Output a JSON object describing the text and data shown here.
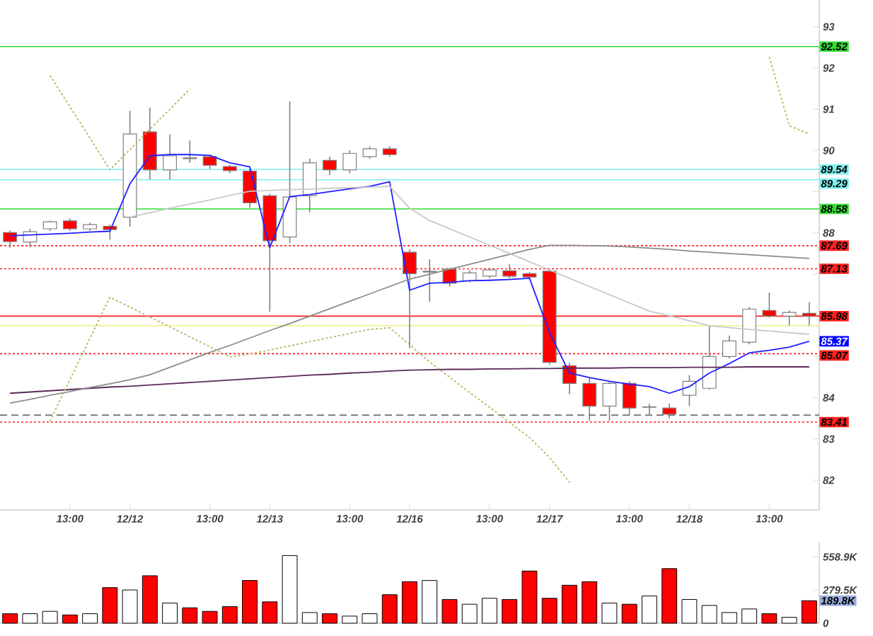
{
  "chart_data": [
    {
      "type": "candlestick",
      "categories": [
        null,
        null,
        null,
        "13:00",
        null,
        null,
        "12/12",
        null,
        null,
        null,
        "13:00",
        null,
        null,
        "12/13",
        null,
        null,
        null,
        "13:00",
        null,
        null,
        "12/16",
        null,
        null,
        null,
        "13:00",
        null,
        null,
        "12/17",
        null,
        null,
        null,
        "13:00",
        null,
        null,
        "12/18",
        null,
        null,
        null,
        "13:00",
        null,
        null
      ],
      "ohlc": [
        [
          88.01,
          88.06,
          87.64,
          87.79
        ],
        [
          87.78,
          88.1,
          87.65,
          88.03
        ],
        [
          88.1,
          88.3,
          88.05,
          88.27
        ],
        [
          88.29,
          88.35,
          88.05,
          88.1
        ],
        [
          88.1,
          88.25,
          88.05,
          88.2
        ],
        [
          88.16,
          88.2,
          87.84,
          88.08
        ],
        [
          88.38,
          90.96,
          88.15,
          90.4
        ],
        [
          90.45,
          91.04,
          89.3,
          89.53
        ],
        [
          89.53,
          90.39,
          89.3,
          89.87
        ],
        [
          89.82,
          90.24,
          89.7,
          89.8
        ],
        [
          89.85,
          89.9,
          89.55,
          89.64
        ],
        [
          89.61,
          89.65,
          89.45,
          89.51
        ],
        [
          89.5,
          89.55,
          88.61,
          88.73
        ],
        [
          88.9,
          88.95,
          86.09,
          87.81
        ],
        [
          87.9,
          91.19,
          87.75,
          88.87
        ],
        [
          88.9,
          89.8,
          88.5,
          89.7
        ],
        [
          89.76,
          89.85,
          89.4,
          89.53
        ],
        [
          89.53,
          90.0,
          89.45,
          89.93
        ],
        [
          89.85,
          90.1,
          89.8,
          90.04
        ],
        [
          90.04,
          90.1,
          89.85,
          89.9
        ],
        [
          87.53,
          87.6,
          85.2,
          87.01
        ],
        [
          87.05,
          87.36,
          86.33,
          87.07
        ],
        [
          87.12,
          87.15,
          86.7,
          86.78
        ],
        [
          86.84,
          87.1,
          86.8,
          87.03
        ],
        [
          86.95,
          87.15,
          86.9,
          87.1
        ],
        [
          87.08,
          87.24,
          86.9,
          86.95
        ],
        [
          87.01,
          87.05,
          86.88,
          86.93
        ],
        [
          87.07,
          87.1,
          84.8,
          84.86
        ],
        [
          84.78,
          84.85,
          84.09,
          84.35
        ],
        [
          84.35,
          84.49,
          83.44,
          83.8
        ],
        [
          83.8,
          84.4,
          83.44,
          84.35
        ],
        [
          84.35,
          84.4,
          83.57,
          83.75
        ],
        [
          83.77,
          83.85,
          83.6,
          83.78
        ],
        [
          83.75,
          83.86,
          83.5,
          83.6
        ],
        [
          84.06,
          84.55,
          83.8,
          84.4
        ],
        [
          84.23,
          85.75,
          84.2,
          85.0
        ],
        [
          85.0,
          85.51,
          84.95,
          85.38
        ],
        [
          85.35,
          86.2,
          85.3,
          86.15
        ],
        [
          86.12,
          86.55,
          85.95,
          85.98
        ],
        [
          85.98,
          86.12,
          85.75,
          86.07
        ],
        [
          86.05,
          86.32,
          85.75,
          85.98
        ]
      ],
      "colors": [
        "#ff0000",
        "#ffffff",
        "#ffffff",
        "#ff0000",
        "#ffffff",
        "#ff0000",
        "#ffffff",
        "#ff0000",
        "#ffffff",
        "#ff0000",
        "#ff0000",
        "#ff0000",
        "#ff0000",
        "#ff0000",
        "#ffffff",
        "#ffffff",
        "#ff0000",
        "#ffffff",
        "#ffffff",
        "#ff0000",
        "#ff0000",
        "#ffffff",
        "#ff0000",
        "#ffffff",
        "#ffffff",
        "#ff0000",
        "#ff0000",
        "#ff0000",
        "#ff0000",
        "#ff0000",
        "#ffffff",
        "#ff0000",
        "#ffffff",
        "#ff0000",
        "#ffffff",
        "#ffffff",
        "#ffffff",
        "#ffffff",
        "#ff0000",
        "#ffffff",
        "#ff0000"
      ],
      "series": [
        {
          "type": "line",
          "color": "#1f1fff",
          "line_style": "solid",
          "values": [
            87.93,
            87.95,
            87.97,
            87.99,
            88.02,
            88.04,
            89.19,
            89.87,
            89.9,
            89.9,
            89.88,
            89.7,
            89.6,
            87.64,
            88.88,
            88.93,
            89.0,
            89.07,
            89.13,
            89.24,
            86.61,
            86.78,
            86.8,
            86.84,
            86.85,
            86.87,
            86.9,
            85.58,
            84.6,
            84.49,
            84.4,
            84.33,
            84.27,
            84.11,
            84.27,
            84.6,
            84.83,
            85.09,
            85.15,
            85.23,
            85.37
          ]
        },
        {
          "type": "line",
          "color": "#5a2a5a",
          "line_style": "solid",
          "values": [
            84.11,
            84.14,
            84.17,
            84.2,
            84.23,
            84.26,
            84.28,
            84.31,
            84.34,
            84.37,
            84.4,
            84.43,
            84.46,
            84.49,
            84.52,
            84.55,
            84.57,
            84.6,
            84.62,
            84.65,
            84.67,
            84.68,
            84.69,
            84.69,
            84.7,
            84.7,
            84.71,
            84.71,
            84.72,
            84.72,
            84.72,
            84.73,
            84.73,
            84.73,
            84.74,
            84.74,
            84.74,
            84.75,
            84.75,
            84.75,
            84.75
          ]
        },
        {
          "type": "line",
          "color": "#8c8c8c",
          "line_style": "solid",
          "values": [
            83.87,
            83.96,
            84.06,
            84.15,
            84.25,
            84.34,
            84.44,
            84.56,
            84.74,
            84.92,
            85.1,
            85.27,
            85.45,
            85.63,
            85.8,
            85.98,
            86.16,
            86.34,
            86.52,
            86.7,
            86.88,
            87.0,
            87.12,
            87.24,
            87.36,
            87.48,
            87.6,
            87.7,
            87.7,
            87.69,
            87.68,
            87.66,
            87.63,
            87.6,
            87.56,
            87.53,
            87.5,
            87.47,
            87.44,
            87.41,
            87.38
          ]
        },
        {
          "type": "line",
          "color": "#c8c8c8",
          "line_style": "solid",
          "values": [
            null,
            null,
            null,
            null,
            null,
            null,
            88.38,
            88.49,
            88.6,
            88.7,
            88.8,
            88.91,
            89.01,
            89.03,
            89.05,
            89.06,
            89.08,
            89.1,
            89.11,
            89.13,
            88.6,
            88.3,
            88.1,
            87.9,
            87.7,
            87.5,
            87.3,
            87.1,
            86.9,
            86.7,
            86.5,
            86.3,
            86.1,
            85.99,
            85.87,
            85.75,
            85.7,
            85.66,
            85.62,
            85.58,
            85.54
          ]
        },
        {
          "type": "line",
          "color": "#b5b560",
          "line_style": "dotted",
          "values": [
            null,
            null,
            91.82,
            91.06,
            90.3,
            89.53,
            90.02,
            90.51,
            91.0,
            91.49,
            null,
            null,
            null,
            null,
            null,
            null,
            null,
            null,
            null,
            null,
            null,
            null,
            null,
            null,
            null,
            null,
            null,
            null,
            null,
            null,
            null,
            null,
            null,
            null,
            null,
            null,
            null,
            null,
            92.27,
            90.6,
            90.4
          ]
        },
        {
          "type": "line",
          "color": "#b5b560",
          "line_style": "dotted",
          "values": [
            null,
            null,
            83.43,
            84.44,
            85.44,
            86.44,
            86.2,
            85.96,
            85.72,
            85.48,
            85.24,
            84.99,
            85.06,
            85.16,
            85.26,
            85.36,
            85.46,
            85.56,
            85.66,
            85.7,
            85.29,
            84.87,
            84.5,
            84.13,
            83.77,
            83.4,
            83.04,
            82.55,
            81.95,
            null,
            null,
            null,
            null,
            null,
            null,
            null,
            null,
            null,
            null,
            null,
            null
          ]
        }
      ],
      "ref_lines": [
        {
          "axis": "y",
          "value": 92.52,
          "label": "92.52",
          "color": "#33dd33",
          "line_style": "solid"
        },
        {
          "axis": "y",
          "value": 89.54,
          "label": "89.54",
          "color": "#80f0f0",
          "line_style": "solid"
        },
        {
          "axis": "y",
          "value": 89.29,
          "label": "89.29",
          "color": "#80f0f0",
          "line_style": "solid"
        },
        {
          "axis": "y",
          "value": 88.58,
          "label": "88.58",
          "color": "#33dd33",
          "line_style": "solid"
        },
        {
          "axis": "y",
          "value": 87.69,
          "label": "87.69",
          "color": "#ff2020",
          "line_style": "dotted"
        },
        {
          "axis": "y",
          "value": 87.13,
          "label": "87.13",
          "color": "#ff2020",
          "line_style": "dotted"
        },
        {
          "axis": "y",
          "value": 85.98,
          "label": "85.98",
          "color": "#ff2020",
          "line_style": "solid"
        },
        {
          "axis": "y",
          "value": 85.75,
          "label": null,
          "color": "#f0f080",
          "line_style": "solid"
        },
        {
          "axis": "y",
          "value": 85.07,
          "label": "85.07",
          "color": "#ff2020",
          "line_style": "dotted"
        },
        {
          "axis": "y",
          "value": 83.58,
          "label": null,
          "color": "#707070",
          "line_style": "dashed"
        },
        {
          "axis": "y",
          "value": 83.41,
          "label": "83.41",
          "color": "#ff2020",
          "line_style": "dotted"
        }
      ],
      "annotations": [
        {
          "text": "85.37",
          "y": 85.37
        }
      ],
      "ylim": [
        81.28,
        93.65
      ],
      "yticks": [
        82,
        83,
        84,
        {
          "value": 85,
          "label": null
        },
        {
          "value": 86,
          "label": null
        },
        {
          "value": 87,
          "label": null
        },
        88,
        {
          "value": 89,
          "label": null
        },
        90,
        91,
        92,
        93
      ],
      "grid": false
    },
    {
      "type": "bar",
      "categories": [
        null,
        null,
        null,
        null,
        null,
        null,
        null,
        null,
        null,
        null,
        null,
        null,
        null,
        null,
        null,
        null,
        null,
        null,
        null,
        null,
        null,
        null,
        null,
        null,
        null,
        null,
        null,
        null,
        null,
        null,
        null,
        null,
        null,
        null,
        null,
        null,
        null,
        null,
        null,
        null,
        null
      ],
      "values": [
        80,
        80,
        100,
        70,
        80,
        300,
        280,
        400,
        170,
        130,
        100,
        140,
        360,
        180,
        570,
        90,
        80,
        60,
        80,
        240,
        350,
        360,
        200,
        160,
        210,
        200,
        440,
        210,
        320,
        350,
        170,
        160,
        230,
        460,
        200,
        150,
        90,
        120,
        80,
        50,
        189.8
      ],
      "colors": [
        "#ff0000",
        "#ffffff",
        "#ffffff",
        "#ff0000",
        "#ffffff",
        "#ff0000",
        "#ffffff",
        "#ff0000",
        "#ffffff",
        "#ff0000",
        "#ff0000",
        "#ff0000",
        "#ff0000",
        "#ff0000",
        "#ffffff",
        "#ffffff",
        "#ff0000",
        "#ffffff",
        "#ffffff",
        "#ff0000",
        "#ff0000",
        "#ffffff",
        "#ff0000",
        "#ffffff",
        "#ffffff",
        "#ff0000",
        "#ff0000",
        "#ff0000",
        "#ff0000",
        "#ff0000",
        "#ffffff",
        "#ff0000",
        "#ffffff",
        "#ff0000",
        "#ffffff",
        "#ffffff",
        "#ffffff",
        "#ffffff",
        "#ff0000",
        "#ffffff",
        "#ff0000"
      ],
      "annotations": [
        "189.8K"
      ],
      "ylim": [
        0,
        680
      ],
      "yticks": [
        0,
        {
          "value": 279.5,
          "label": "279.5K"
        },
        {
          "value": 558.9,
          "label": "558.9K"
        }
      ],
      "tick_labels": "y",
      "grid": false
    }
  ]
}
